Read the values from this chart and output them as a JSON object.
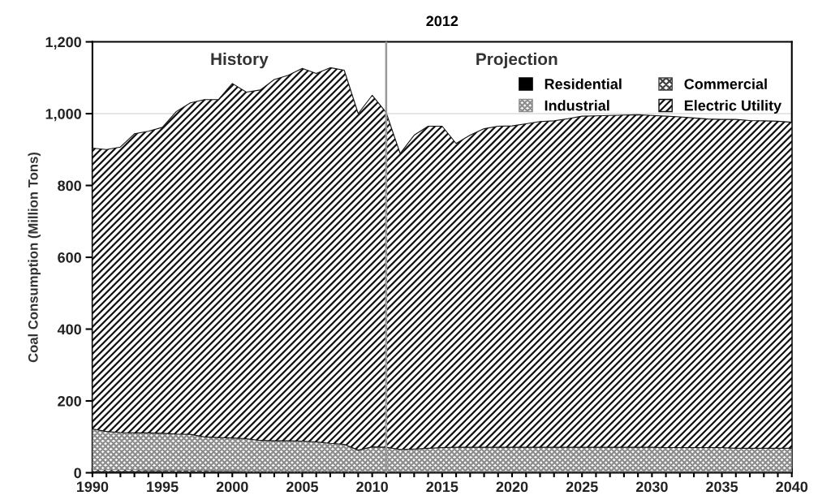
{
  "chart_data": {
    "type": "area",
    "stacked": true,
    "title": "2012",
    "ylabel": "Coal Consumption (Million Tons)",
    "annotations": [
      "History",
      "Projection"
    ],
    "x": [
      1990,
      1991,
      1992,
      1993,
      1994,
      1995,
      1996,
      1997,
      1998,
      1999,
      2000,
      2001,
      2002,
      2003,
      2004,
      2005,
      2006,
      2007,
      2008,
      2009,
      2010,
      2011,
      2012,
      2013,
      2014,
      2015,
      2016,
      2017,
      2018,
      2019,
      2020,
      2021,
      2022,
      2023,
      2024,
      2025,
      2026,
      2027,
      2028,
      2029,
      2030,
      2031,
      2032,
      2033,
      2034,
      2035,
      2036,
      2037,
      2038,
      2039,
      2040
    ],
    "series": [
      {
        "name": "Residential",
        "color": "#000000",
        "values": [
          3,
          3,
          3,
          3,
          3,
          3,
          2,
          2,
          2,
          2,
          2,
          1,
          1,
          1,
          1,
          1,
          1,
          1,
          1,
          1,
          1,
          1,
          1,
          1,
          1,
          1,
          1,
          1,
          1,
          1,
          1,
          1,
          1,
          1,
          1,
          1,
          1,
          1,
          1,
          1,
          1,
          1,
          1,
          1,
          1,
          1,
          1,
          1,
          1,
          1,
          1
        ]
      },
      {
        "name": "Commercial",
        "color": "#404040",
        "values": [
          6,
          6,
          6,
          6,
          5,
          5,
          5,
          5,
          5,
          4,
          4,
          4,
          4,
          4,
          4,
          4,
          4,
          4,
          4,
          3,
          3,
          3,
          3,
          3,
          3,
          3,
          3,
          3,
          3,
          3,
          3,
          3,
          3,
          3,
          3,
          3,
          3,
          3,
          3,
          3,
          3,
          3,
          3,
          3,
          3,
          3,
          3,
          3,
          3,
          3,
          3
        ]
      },
      {
        "name": "Industrial",
        "color": "#8c8c8c",
        "values": [
          113,
          106,
          103,
          102,
          103,
          102,
          101,
          100,
          93,
          92,
          91,
          90,
          85,
          84,
          84,
          83,
          81,
          77,
          74,
          59,
          68,
          67,
          61,
          62,
          64,
          66,
          67,
          67,
          67,
          67,
          67,
          67,
          67,
          67,
          67,
          67,
          67,
          67,
          67,
          67,
          67,
          66,
          66,
          66,
          66,
          66,
          64,
          64,
          64,
          64,
          64
        ]
      },
      {
        "name": "Electric Utility",
        "color": "#111111",
        "values": [
          782,
          785,
          795,
          833,
          840,
          852,
          898,
          923,
          939,
          941,
          987,
          965,
          976,
          1006,
          1018,
          1038,
          1026,
          1046,
          1042,
          937,
          979,
          932,
          824,
          874,
          897,
          895,
          846,
          869,
          887,
          894,
          895,
          901,
          907,
          909,
          915,
          922,
          923,
          924,
          925,
          926,
          924,
          923,
          921,
          918,
          915,
          914,
          916,
          913,
          912,
          911,
          908
        ]
      }
    ],
    "xlim": [
      1990,
      2040
    ],
    "xticks": [
      1990,
      {
        "value": 1991,
        "label": null
      },
      {
        "value": 1992,
        "label": null
      },
      {
        "value": 1993,
        "label": null
      },
      {
        "value": 1994,
        "label": null
      },
      1995,
      {
        "value": 1996,
        "label": null
      },
      {
        "value": 1997,
        "label": null
      },
      {
        "value": 1998,
        "label": null
      },
      {
        "value": 1999,
        "label": null
      },
      2000,
      {
        "value": 2001,
        "label": null
      },
      {
        "value": 2002,
        "label": null
      },
      {
        "value": 2003,
        "label": null
      },
      {
        "value": 2004,
        "label": null
      },
      2005,
      {
        "value": 2006,
        "label": null
      },
      {
        "value": 2007,
        "label": null
      },
      {
        "value": 2008,
        "label": null
      },
      {
        "value": 2009,
        "label": null
      },
      2010,
      {
        "value": 2011,
        "label": null
      },
      {
        "value": 2012,
        "label": null
      },
      {
        "value": 2013,
        "label": null
      },
      {
        "value": 2014,
        "label": null
      },
      2015,
      {
        "value": 2016,
        "label": null
      },
      {
        "value": 2017,
        "label": null
      },
      {
        "value": 2018,
        "label": null
      },
      {
        "value": 2019,
        "label": null
      },
      2020,
      {
        "value": 2021,
        "label": null
      },
      {
        "value": 2022,
        "label": null
      },
      {
        "value": 2023,
        "label": null
      },
      {
        "value": 2024,
        "label": null
      },
      2025,
      {
        "value": 2026,
        "label": null
      },
      {
        "value": 2027,
        "label": null
      },
      {
        "value": 2028,
        "label": null
      },
      {
        "value": 2029,
        "label": null
      },
      2030,
      {
        "value": 2031,
        "label": null
      },
      {
        "value": 2032,
        "label": null
      },
      {
        "value": 2033,
        "label": null
      },
      {
        "value": 2034,
        "label": null
      },
      2035,
      {
        "value": 2036,
        "label": null
      },
      {
        "value": 2037,
        "label": null
      },
      {
        "value": 2038,
        "label": null
      },
      {
        "value": 2039,
        "label": null
      },
      2040
    ],
    "ylim": [
      0,
      1200
    ],
    "yticks": [
      0,
      200,
      400,
      600,
      800,
      {
        "value": 1000,
        "label": "1,000"
      },
      {
        "value": 1200,
        "label": "1,200"
      }
    ],
    "ref_lines": [
      {
        "axis": "x",
        "value": 2011,
        "color": "#999999"
      },
      {
        "axis": "y",
        "value": 1000,
        "color": "#dddddd"
      }
    ],
    "legend": "top right"
  }
}
